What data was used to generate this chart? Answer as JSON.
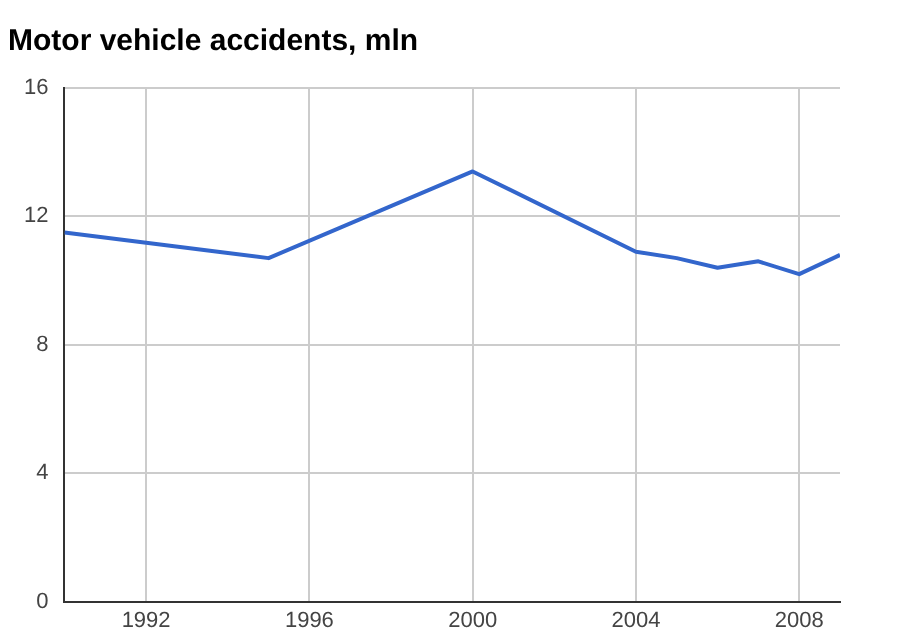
{
  "chart_data": {
    "type": "line",
    "title": "Motor vehicle accidents, mln",
    "x": [
      1990,
      1995,
      2000,
      2004,
      2005,
      2006,
      2007,
      2008,
      2009
    ],
    "series": [
      {
        "color": "#3366cc",
        "values": [
          11.5,
          10.7,
          13.4,
          10.9,
          10.7,
          10.4,
          10.6,
          10.2,
          10.8
        ]
      }
    ],
    "xlim": [
      1990,
      2009
    ],
    "xticks": [
      1992,
      1996,
      2000,
      2004,
      2008
    ],
    "ylim": [
      0,
      16
    ],
    "yticks": [
      0,
      4,
      8,
      12,
      16
    ],
    "grid": true,
    "legend": false,
    "marker": "none"
  }
}
